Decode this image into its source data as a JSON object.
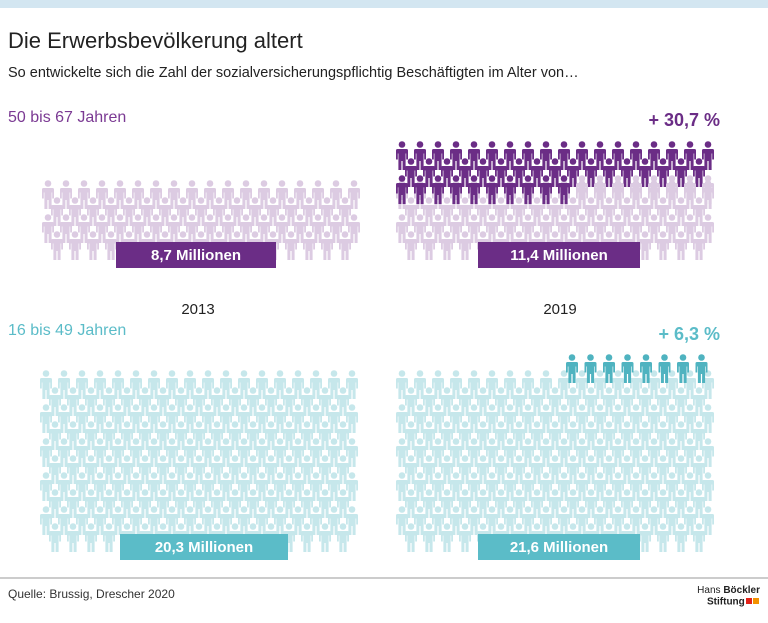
{
  "title": "Die Erwerbsbevölkerung altert",
  "subtitle": "So entwickelte sich die Zahl der sozialversicherungspflichtig Beschäftigten im Alter von…",
  "years": [
    "2013",
    "2019"
  ],
  "panels": [
    {
      "label": "50 bis 67 Jahren",
      "change": "+ 30,7 %",
      "values": [
        "8,7 Millionen",
        "11,4 Millionen"
      ]
    },
    {
      "label": "16 bis 49 Jahren",
      "change": "+ 6,3 %",
      "values": [
        "20,3 Millionen",
        "21,6 Millionen"
      ]
    }
  ],
  "source": "Quelle: Brussig, Drescher 2020",
  "logo": [
    "Hans",
    "Böckler",
    "Stiftung"
  ]
}
